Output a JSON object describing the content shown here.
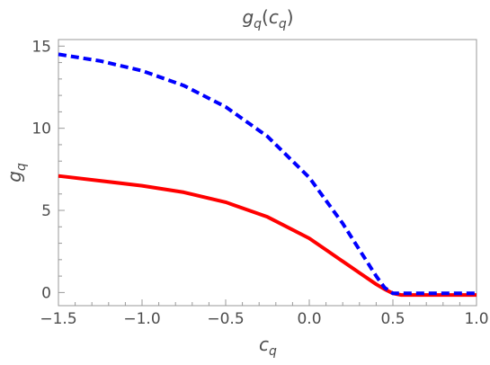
{
  "chart_data": {
    "type": "line",
    "title": "g_q(c_q)",
    "xlabel": "c_q",
    "ylabel": "g_q",
    "xlim": [
      -1.5,
      1.0
    ],
    "ylim": [
      -0.8,
      15.4
    ],
    "grid": false,
    "x_ticks": [
      -1.5,
      -1.0,
      -0.5,
      0.0,
      0.5,
      1.0
    ],
    "x_tick_labels": [
      "−1.5",
      "−1.0",
      "−0.5",
      "0.0",
      "0.5",
      "1.0"
    ],
    "y_ticks": [
      0,
      5,
      10,
      15
    ],
    "y_tick_labels": [
      "0",
      "5",
      "10",
      "15"
    ],
    "series": [
      {
        "color": "#ff0000",
        "style": "solid",
        "x": [
          -1.5,
          -1.25,
          -1.0,
          -0.75,
          -0.5,
          -0.25,
          0.0,
          0.1,
          0.2,
          0.3,
          0.4,
          0.45,
          0.5,
          0.55,
          0.6,
          0.7,
          0.8,
          0.9,
          1.0
        ],
        "y": [
          7.1,
          6.8,
          6.5,
          6.1,
          5.5,
          4.6,
          3.3,
          2.6,
          1.9,
          1.2,
          0.5,
          0.2,
          -0.05,
          -0.15,
          -0.15,
          -0.15,
          -0.15,
          -0.15,
          -0.15
        ]
      },
      {
        "color": "#0000ff",
        "style": "dashed",
        "x": [
          -1.5,
          -1.25,
          -1.0,
          -0.75,
          -0.5,
          -0.25,
          0.0,
          0.1,
          0.2,
          0.3,
          0.4,
          0.45,
          0.5,
          0.55,
          0.6,
          0.7,
          0.8,
          0.9,
          1.0
        ],
        "y": [
          14.5,
          14.1,
          13.5,
          12.6,
          11.3,
          9.5,
          7.0,
          5.6,
          4.2,
          2.6,
          1.0,
          0.3,
          -0.05,
          -0.05,
          -0.05,
          -0.05,
          -0.05,
          -0.05,
          -0.05
        ]
      }
    ]
  }
}
